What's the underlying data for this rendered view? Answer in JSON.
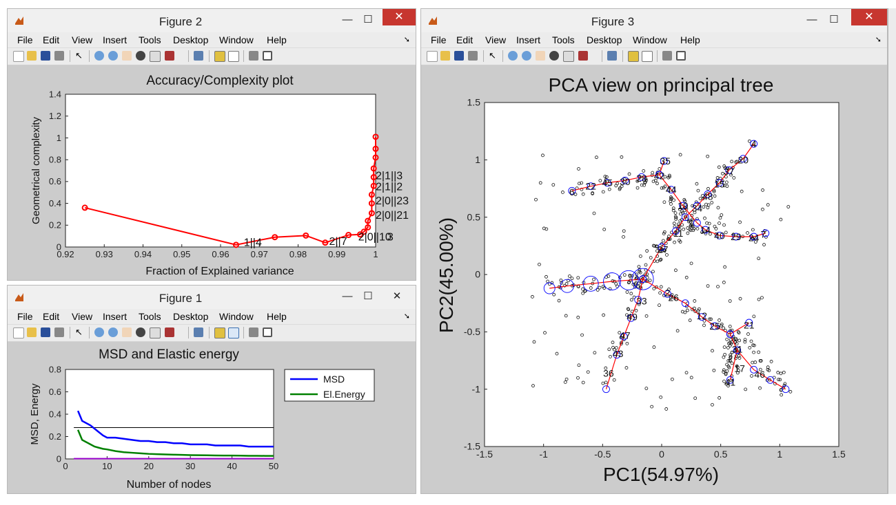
{
  "menu_items": [
    "File",
    "Edit",
    "View",
    "Insert",
    "Tools",
    "Desktop",
    "Window",
    "Help"
  ],
  "fig2": {
    "window_title": "Figure 2",
    "chart_data": {
      "type": "line",
      "title": "Accuracy/Complexity plot",
      "xlabel": "Fraction of Explained variance",
      "ylabel": "Geometrical complexity",
      "xlim": [
        0.92,
        1.0
      ],
      "ylim": [
        0,
        1.4
      ],
      "xticks": [
        "0.92",
        "0.93",
        "0.94",
        "0.95",
        "0.96",
        "0.97",
        "0.98",
        "0.99",
        "1"
      ],
      "yticks": [
        "0",
        "0.2",
        "0.4",
        "0.6",
        "0.8",
        "1",
        "1.2",
        "1.4"
      ],
      "series_color": "#ff0000",
      "points": [
        [
          0.925,
          0.36
        ],
        [
          0.964,
          0.02
        ],
        [
          0.974,
          0.09
        ],
        [
          0.982,
          0.105
        ],
        [
          0.987,
          0.04
        ],
        [
          0.993,
          0.11
        ],
        [
          0.996,
          0.115
        ],
        [
          0.997,
          0.14
        ],
        [
          0.998,
          0.18
        ],
        [
          0.998,
          0.24
        ],
        [
          0.999,
          0.31
        ],
        [
          0.999,
          0.4
        ],
        [
          0.999,
          0.48
        ],
        [
          0.9995,
          0.56
        ],
        [
          0.9995,
          0.64
        ],
        [
          0.9995,
          0.72
        ],
        [
          1.0,
          0.82
        ],
        [
          1.0,
          0.9
        ],
        [
          1.0,
          1.01
        ]
      ],
      "annotations": [
        {
          "text": "1||4",
          "x": 0.966,
          "y": 0.01
        },
        {
          "text": "2||7",
          "x": 0.988,
          "y": 0.02
        },
        {
          "text": "2|0||10",
          "x": 0.9955,
          "y": 0.06
        },
        {
          "text": "3",
          "x": 1.003,
          "y": 0.06
        },
        {
          "text": "2|0||21",
          "x": 1.0,
          "y": 0.26
        },
        {
          "text": "2|0||23",
          "x": 1.0,
          "y": 0.39
        },
        {
          "text": "2|1||2",
          "x": 1.0,
          "y": 0.52
        },
        {
          "text": "2|1||3",
          "x": 1.0,
          "y": 0.62
        }
      ]
    }
  },
  "fig1": {
    "window_title": "Figure 1",
    "chart_data": {
      "type": "line",
      "title": "MSD and Elastic energy",
      "xlabel": "Number of nodes",
      "ylabel": "MSD, Energy",
      "xlim": [
        0,
        50
      ],
      "ylim": [
        0,
        0.8
      ],
      "xticks": [
        "0",
        "10",
        "20",
        "30",
        "40",
        "50"
      ],
      "yticks": [
        "0",
        "0.2",
        "0.4",
        "0.6",
        "0.8"
      ],
      "x": [
        3,
        4,
        5,
        6,
        7,
        8,
        9,
        10,
        12,
        14,
        16,
        18,
        20,
        22,
        24,
        26,
        28,
        30,
        32,
        34,
        36,
        38,
        40,
        42,
        44,
        46,
        48,
        50
      ],
      "series": [
        {
          "name": "MSD",
          "color": "#0000ff",
          "values": [
            0.43,
            0.34,
            0.32,
            0.3,
            0.27,
            0.24,
            0.21,
            0.19,
            0.19,
            0.18,
            0.17,
            0.16,
            0.16,
            0.15,
            0.15,
            0.14,
            0.14,
            0.13,
            0.13,
            0.13,
            0.12,
            0.12,
            0.12,
            0.12,
            0.11,
            0.11,
            0.11,
            0.11
          ]
        },
        {
          "name": "El.Energy",
          "color": "#008000",
          "values": [
            0.26,
            0.17,
            0.15,
            0.13,
            0.11,
            0.1,
            0.09,
            0.085,
            0.07,
            0.06,
            0.055,
            0.05,
            0.045,
            0.042,
            0.04,
            0.038,
            0.036,
            0.034,
            0.033,
            0.032,
            0.031,
            0.03,
            0.03,
            0.029,
            0.028,
            0.028,
            0.027,
            0.027
          ]
        }
      ],
      "hline": 0.28,
      "hline_color": "#000000",
      "floor_color": "#9900cc"
    }
  },
  "fig3": {
    "window_title": "Figure 3",
    "chart_data": {
      "type": "scatter",
      "title": "PCA view on principal tree",
      "xlabel": "PC1(54.97%)",
      "ylabel": "PC2(45.00%)",
      "xlim": [
        -1.5,
        1.5
      ],
      "ylim": [
        -1.5,
        1.5
      ],
      "xticks": [
        "-1.5",
        "-1",
        "-0.5",
        "0",
        "0.5",
        "1",
        "1.5"
      ],
      "yticks": [
        "-1.5",
        "-1",
        "-0.5",
        "0",
        "0.5",
        "1",
        "1.5"
      ],
      "node_labels": [
        {
          "text": "4",
          "x": 0.78,
          "y": 1.14
        },
        {
          "text": "20",
          "x": 0.69,
          "y": 1.0
        },
        {
          "text": "37",
          "x": 0.57,
          "y": 0.9
        },
        {
          "text": "15",
          "x": 0.49,
          "y": 0.79
        },
        {
          "text": "48",
          "x": 0.39,
          "y": 0.68
        },
        {
          "text": "34",
          "x": 0.3,
          "y": 0.58
        },
        {
          "text": "19",
          "x": 0.18,
          "y": 0.6
        },
        {
          "text": "44",
          "x": 0.08,
          "y": 0.74
        },
        {
          "text": "42",
          "x": -0.02,
          "y": 0.86
        },
        {
          "text": "35",
          "x": 0.03,
          "y": 0.99
        },
        {
          "text": "28",
          "x": -0.17,
          "y": 0.84
        },
        {
          "text": "30",
          "x": -0.31,
          "y": 0.81
        },
        {
          "text": "45",
          "x": -0.46,
          "y": 0.8
        },
        {
          "text": "22",
          "x": -0.6,
          "y": 0.77
        },
        {
          "text": "6",
          "x": -0.76,
          "y": 0.72
        },
        {
          "text": "14",
          "x": 0.37,
          "y": 0.39
        },
        {
          "text": "40",
          "x": 0.49,
          "y": 0.34
        },
        {
          "text": "29",
          "x": 0.63,
          "y": 0.33
        },
        {
          "text": "24",
          "x": 0.78,
          "y": 0.32
        },
        {
          "text": "7",
          "x": 0.86,
          "y": 0.35
        },
        {
          "text": "11",
          "x": 0.14,
          "y": 0.36
        },
        {
          "text": "27",
          "x": 0.01,
          "y": 0.22
        },
        {
          "text": "33",
          "x": -0.17,
          "y": -0.23
        },
        {
          "text": "49",
          "x": -0.25,
          "y": -0.37
        },
        {
          "text": "47",
          "x": -0.31,
          "y": -0.53
        },
        {
          "text": "43",
          "x": -0.37,
          "y": -0.69
        },
        {
          "text": "36",
          "x": -0.45,
          "y": -0.86
        },
        {
          "text": "2",
          "x": 0.05,
          "y": -0.16
        },
        {
          "text": "26",
          "x": 0.1,
          "y": -0.2
        },
        {
          "text": "12",
          "x": 0.34,
          "y": -0.36
        },
        {
          "text": "25",
          "x": 0.45,
          "y": -0.45
        },
        {
          "text": "31",
          "x": 0.64,
          "y": -0.65
        },
        {
          "text": "21",
          "x": 0.74,
          "y": -0.44
        },
        {
          "text": "17",
          "x": 0.66,
          "y": -0.82
        },
        {
          "text": "41",
          "x": 0.58,
          "y": -0.94
        },
        {
          "text": "46",
          "x": 0.83,
          "y": -0.87
        }
      ]
    }
  }
}
